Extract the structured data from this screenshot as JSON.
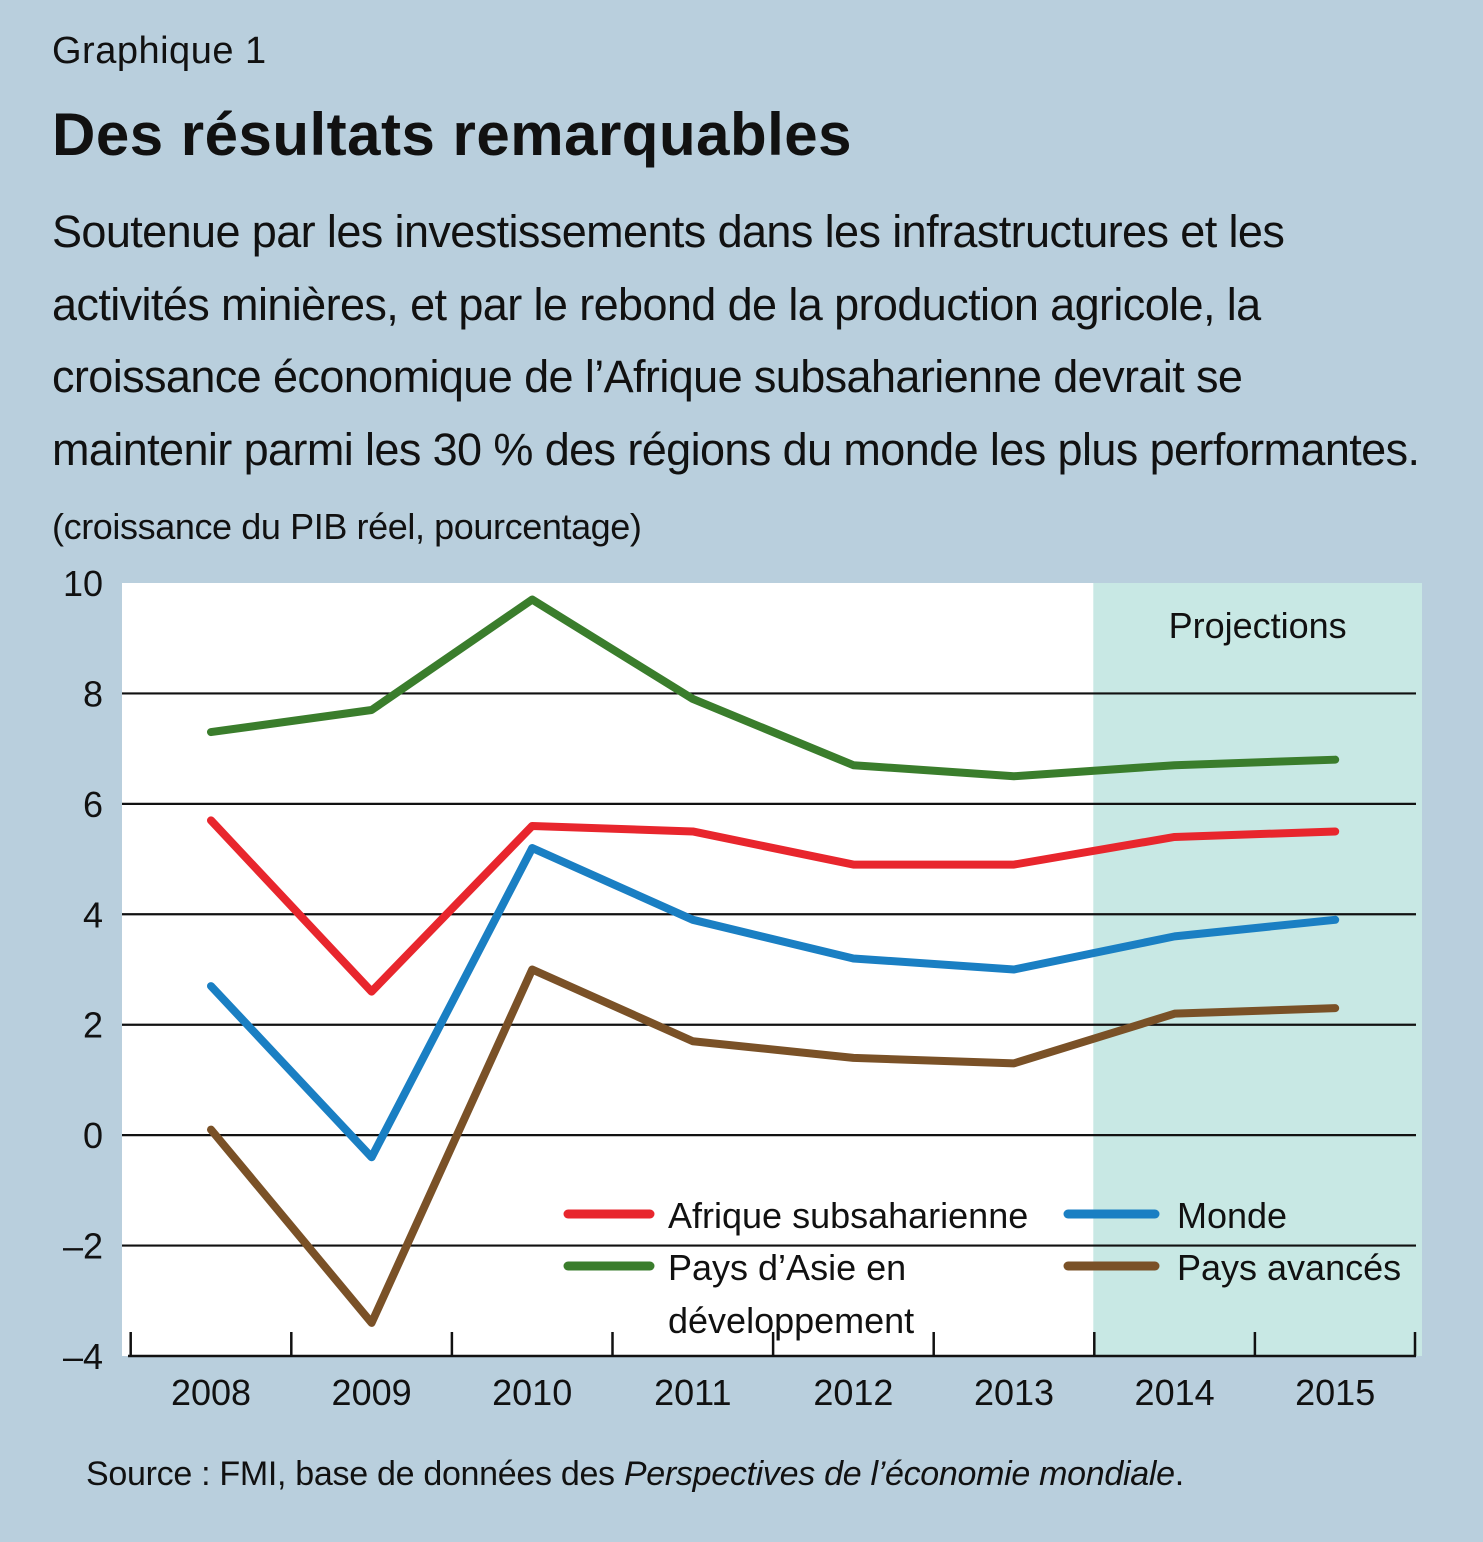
{
  "header": {
    "graph_number": "Graphique 1",
    "title": "Des résultats remarquables",
    "subtitle": "Soutenue par les investissements dans les infrastructures et les activités minières, et par le rebond de la production agricole, la croissance économique de l’Afrique subsaharienne devrait se maintenir parmi les 30 % des régions du monde les plus performantes.",
    "units": "(croissance du PIB réel, pourcentage)"
  },
  "footer": {
    "source_prefix": "Source : FMI, base de données des ",
    "source_italic": "Perspectives de l’économie mondiale",
    "source_suffix": "."
  },
  "chart_data": {
    "type": "line",
    "x": [
      "2008",
      "2009",
      "2010",
      "2011",
      "2012",
      "2013",
      "2014",
      "2015"
    ],
    "ylim": [
      -4,
      10
    ],
    "yticks": [
      10,
      8,
      6,
      4,
      2,
      0,
      -2,
      -4
    ],
    "ytick_labels": [
      "10",
      "8",
      "6",
      "4",
      "2",
      "0",
      "–2",
      "–4"
    ],
    "grid": true,
    "projection_label": "Projections",
    "projection_start": "2014",
    "legend_position": "bottom-right",
    "series": [
      {
        "name": "Afrique subsaharienne",
        "color": "#e8262d",
        "values": [
          5.7,
          2.6,
          5.6,
          5.5,
          4.9,
          4.9,
          5.4,
          5.5
        ]
      },
      {
        "name": "Monde",
        "color": "#1a7fc3",
        "values": [
          2.7,
          -0.4,
          5.2,
          3.9,
          3.2,
          3.0,
          3.6,
          3.9
        ]
      },
      {
        "name": "Pays d’Asie en développement",
        "color": "#3a7d2c",
        "values": [
          7.3,
          7.7,
          9.7,
          7.9,
          6.7,
          6.5,
          6.7,
          6.8
        ]
      },
      {
        "name": "Pays avancés",
        "color": "#7a5127",
        "values": [
          0.1,
          -3.4,
          3.0,
          1.7,
          1.4,
          1.3,
          2.2,
          2.3
        ]
      }
    ],
    "legend": {
      "left": [
        {
          "label_lines": [
            "Afrique subsaharienne"
          ],
          "color": "#e8262d"
        },
        {
          "label_lines": [
            "Pays d’Asie en",
            "développement"
          ],
          "color": "#3a7d2c"
        }
      ],
      "right": [
        {
          "label_lines": [
            "Monde"
          ],
          "color": "#1a7fc3"
        },
        {
          "label_lines": [
            "Pays avancés"
          ],
          "color": "#7a5127"
        }
      ]
    }
  }
}
